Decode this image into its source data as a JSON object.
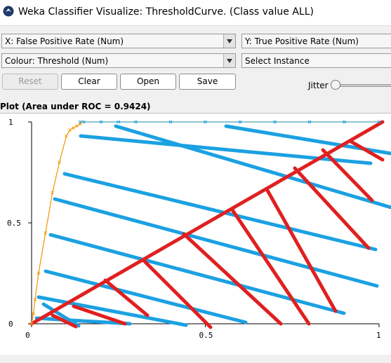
{
  "window": {
    "title": "Weka Classifier Visualize: ThresholdCurve. (Class value ALL)",
    "icon": "weka-bird-icon"
  },
  "controls": {
    "x_axis": "X: False Positive Rate (Num)",
    "y_axis": "Y: True Positive Rate (Num)",
    "colour": "Colour: Threshold (Num)",
    "select_instance": "Select Instance",
    "reset_label": "Reset",
    "clear_label": "Clear",
    "open_label": "Open",
    "save_label": "Save",
    "jitter_label": "Jitter",
    "jitter_value": 0
  },
  "plot": {
    "title": "Plot (Area under ROC = 0.9424)",
    "colors": {
      "roc_curve": "#f39c12",
      "marker_blue": "#1ba1e2",
      "marker_red": "#e02020",
      "axis": "#000000"
    }
  },
  "chart_data": {
    "type": "line",
    "title": "Plot (Area under ROC = 0.9424)",
    "xlabel": "False Positive Rate",
    "ylabel": "True Positive Rate",
    "xlim": [
      0,
      1
    ],
    "ylim": [
      0,
      1
    ],
    "x_ticks": [
      "0",
      "0.5",
      "1"
    ],
    "y_ticks": [
      "0",
      "0.5",
      "1"
    ],
    "series": [
      {
        "name": "ROC",
        "x": [
          0,
          0.005,
          0.01,
          0.02,
          0.04,
          0.06,
          0.08,
          0.1,
          0.11,
          0.12,
          0.13,
          0.14,
          0.14,
          0.15,
          0.2,
          0.25,
          0.3,
          0.4,
          0.5,
          0.6,
          0.7,
          0.8,
          0.9,
          1.0
        ],
        "y": [
          0,
          0.05,
          0.12,
          0.25,
          0.45,
          0.65,
          0.8,
          0.93,
          0.96,
          0.97,
          0.98,
          0.99,
          1.0,
          1.0,
          1.0,
          1.0,
          1.0,
          1.0,
          1.0,
          1.0,
          1.0,
          1.0,
          1.0,
          1.0
        ]
      }
    ]
  }
}
